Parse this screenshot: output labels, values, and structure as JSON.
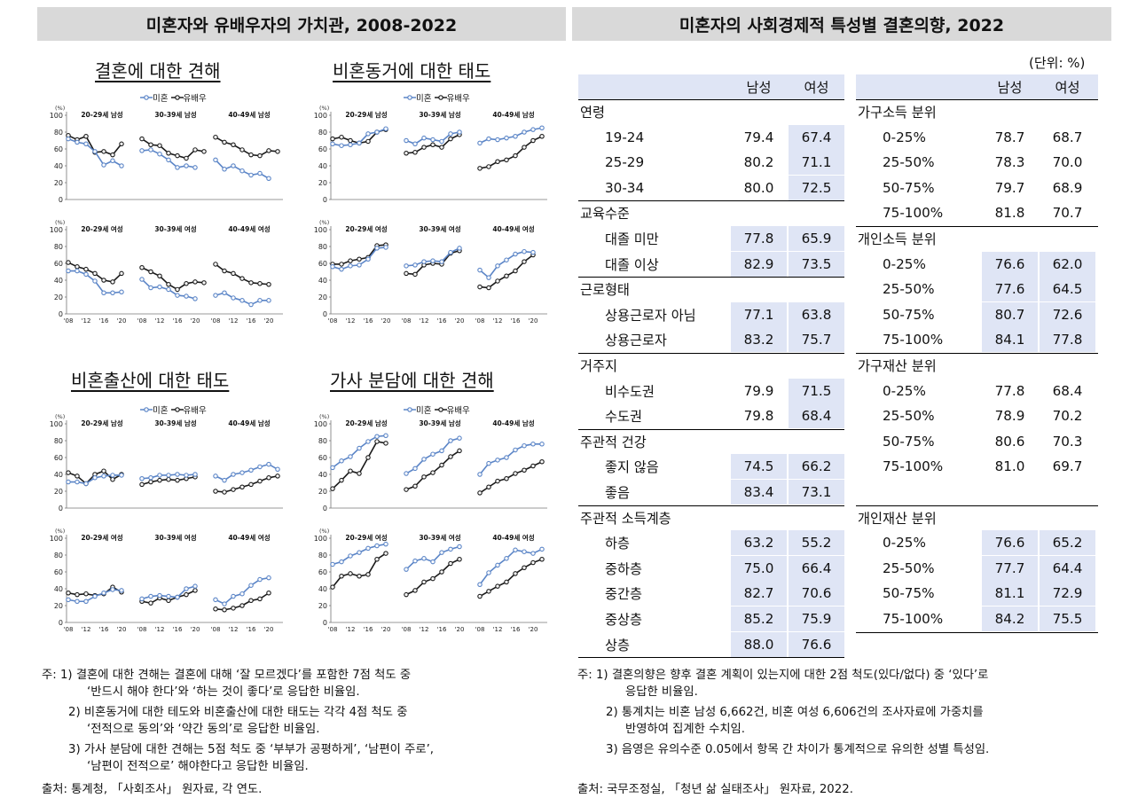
{
  "left": {
    "title": "미혼자와 유배우자의 가치관, 2008-2022",
    "legend": {
      "unmarried": "미혼",
      "married": "유배우"
    },
    "panels": [
      {
        "title": "결혼에 대한 견해"
      },
      {
        "title": "비혼동거에 대한 태도"
      },
      {
        "title": "비혼출산에 대한 태도"
      },
      {
        "title": "가사 분담에 대한 견해"
      }
    ],
    "notes": [
      "주: 1) 결혼에 대한 견해는 결혼에 대해 ‘잘 모르겠다’를 포함한 7점 척도 중",
      "‘반드시 해야 한다’와 ‘하는 것이 좋다’로 응답한 비율임.",
      "2) 비혼동거에 대한 테도와 비혼출산에 대한 태도는 각각 4점 척도 중",
      "‘전적으로 동의’와 ‘약간 동의’로 응답한 비율임.",
      "3) 가사 분담에 대한 견해는 5점 척도 중 ‘부부가 공평하게’, ‘남편이 주로’,",
      "‘남편이 전적으로’ 해야한다고 응답한 비율임."
    ],
    "source": "출처: 통계청, 「사회조사」 원자료, 각 연도."
  },
  "right": {
    "title": "미혼자의 사회경제적 특성별 결혼의향, 2022",
    "unit": "(단위: %)",
    "col_headers": {
      "male": "남성",
      "female": "여성"
    },
    "left_table": [
      {
        "type": "cat",
        "label": "연령"
      },
      {
        "type": "row",
        "label": "19-24",
        "m": "79.4",
        "f": "67.4",
        "sm": false,
        "sf": true
      },
      {
        "type": "row",
        "label": "25-29",
        "m": "80.2",
        "f": "71.1",
        "sm": false,
        "sf": true
      },
      {
        "type": "row",
        "label": "30-34",
        "m": "80.0",
        "f": "72.5",
        "sm": false,
        "sf": true
      },
      {
        "type": "cat",
        "label": "교육수준"
      },
      {
        "type": "row",
        "label": "대졸 미만",
        "m": "77.8",
        "f": "65.9",
        "sm": true,
        "sf": true
      },
      {
        "type": "row",
        "label": "대졸 이상",
        "m": "82.9",
        "f": "73.5",
        "sm": true,
        "sf": true
      },
      {
        "type": "cat",
        "label": "근로형태"
      },
      {
        "type": "row",
        "label": "상용근로자 아님",
        "m": "77.1",
        "f": "63.8",
        "sm": true,
        "sf": true
      },
      {
        "type": "row",
        "label": "상용근로자",
        "m": "83.2",
        "f": "75.7",
        "sm": true,
        "sf": true
      },
      {
        "type": "cat",
        "label": "거주지"
      },
      {
        "type": "row",
        "label": "비수도권",
        "m": "79.9",
        "f": "71.5",
        "sm": false,
        "sf": true
      },
      {
        "type": "row",
        "label": "수도권",
        "m": "79.8",
        "f": "68.4",
        "sm": false,
        "sf": true
      },
      {
        "type": "cat",
        "label": "주관적 건강"
      },
      {
        "type": "row",
        "label": "좋지 않음",
        "m": "74.5",
        "f": "66.2",
        "sm": true,
        "sf": true
      },
      {
        "type": "row",
        "label": "좋음",
        "m": "83.4",
        "f": "73.1",
        "sm": true,
        "sf": true
      },
      {
        "type": "cat",
        "label": "주관적 소득계층"
      },
      {
        "type": "row",
        "label": "하층",
        "m": "63.2",
        "f": "55.2",
        "sm": true,
        "sf": true
      },
      {
        "type": "row",
        "label": "중하층",
        "m": "75.0",
        "f": "66.4",
        "sm": true,
        "sf": true
      },
      {
        "type": "row",
        "label": "중간층",
        "m": "82.7",
        "f": "70.6",
        "sm": true,
        "sf": true
      },
      {
        "type": "row",
        "label": "중상층",
        "m": "85.2",
        "f": "75.9",
        "sm": true,
        "sf": true
      },
      {
        "type": "row",
        "label": "상층",
        "m": "88.0",
        "f": "76.6",
        "sm": true,
        "sf": true
      }
    ],
    "right_table": [
      {
        "type": "cat",
        "label": "가구소득 분위"
      },
      {
        "type": "row",
        "label": "0-25%",
        "m": "78.7",
        "f": "68.7",
        "sm": false,
        "sf": false
      },
      {
        "type": "row",
        "label": "25-50%",
        "m": "78.3",
        "f": "70.0",
        "sm": false,
        "sf": false
      },
      {
        "type": "row",
        "label": "50-75%",
        "m": "79.7",
        "f": "68.9",
        "sm": false,
        "sf": false
      },
      {
        "type": "row",
        "label": "75-100%",
        "m": "81.8",
        "f": "70.7",
        "sm": false,
        "sf": false
      },
      {
        "type": "cat",
        "label": "개인소득 분위"
      },
      {
        "type": "row",
        "label": "0-25%",
        "m": "76.6",
        "f": "62.0",
        "sm": true,
        "sf": true
      },
      {
        "type": "row",
        "label": "25-50%",
        "m": "77.6",
        "f": "64.5",
        "sm": true,
        "sf": true
      },
      {
        "type": "row",
        "label": "50-75%",
        "m": "80.7",
        "f": "72.6",
        "sm": true,
        "sf": true
      },
      {
        "type": "row",
        "label": "75-100%",
        "m": "84.1",
        "f": "77.8",
        "sm": true,
        "sf": true
      },
      {
        "type": "cat",
        "label": "가구재산 분위"
      },
      {
        "type": "row",
        "label": "0-25%",
        "m": "77.8",
        "f": "68.4",
        "sm": false,
        "sf": false
      },
      {
        "type": "row",
        "label": "25-50%",
        "m": "78.9",
        "f": "70.2",
        "sm": false,
        "sf": false
      },
      {
        "type": "row",
        "label": "50-75%",
        "m": "80.6",
        "f": "70.3",
        "sm": false,
        "sf": false
      },
      {
        "type": "row",
        "label": "75-100%",
        "m": "81.0",
        "f": "69.7",
        "sm": false,
        "sf": false
      },
      {
        "type": "cat",
        "label": ""
      },
      {
        "type": "cat",
        "label": "개인재산 분위"
      },
      {
        "type": "row",
        "label": "0-25%",
        "m": "76.6",
        "f": "65.2",
        "sm": true,
        "sf": true
      },
      {
        "type": "row",
        "label": "25-50%",
        "m": "77.7",
        "f": "64.4",
        "sm": true,
        "sf": true
      },
      {
        "type": "row",
        "label": "50-75%",
        "m": "81.1",
        "f": "72.9",
        "sm": true,
        "sf": true
      },
      {
        "type": "row",
        "label": "75-100%",
        "m": "84.2",
        "f": "75.5",
        "sm": true,
        "sf": true
      }
    ],
    "notes": [
      "주: 1) 결혼의향은 향후 결혼 계획이 있는지에 대한 2점 척도(있다/없다) 중 ‘있다’로",
      "응답한 비율임.",
      "2) 통계치는 비혼 남성 6,662건, 비혼 여성 6,606건의 조사자료에 가중치를",
      "반영하여 집계한 수치임.",
      "3) 음영은 유의수준 0.05에서 항목 간 차이가 통계적으로 유의한 성별 특성임."
    ],
    "source": "출처: 국무조정실, 「청년 삶 실태조사」 원자료, 2022."
  },
  "chart_data": {
    "type": "line",
    "colors": {
      "unmarried": "#5b85c7",
      "married": "#1a1a1a"
    },
    "unit_label": "(%)",
    "ylim": [
      0,
      100
    ],
    "yticks": [
      0,
      20,
      40,
      60,
      80,
      100
    ],
    "xtick_labels": [
      "'08",
      "'12",
      "'16",
      "'20"
    ],
    "x": [
      2008,
      2010,
      2012,
      2014,
      2016,
      2018,
      2020,
      2022
    ],
    "group_labels": {
      "male": [
        "20-29세 남성",
        "30-39세 남성",
        "40-49세 남성"
      ],
      "female": [
        "20-29세 여성",
        "30-39세 여성",
        "40-49세 여성"
      ]
    },
    "panels": [
      {
        "male": [
          {
            "unmarried": [
              72,
              68,
              66,
              57,
              41,
              46,
              40,
              null
            ],
            "married": [
              76,
              71,
              75,
              56,
              57,
              53,
              66,
              null
            ]
          },
          {
            "unmarried": [
              58,
              59,
              54,
              47,
              38,
              40,
              38,
              null
            ],
            "married": [
              72,
              65,
              64,
              55,
              52,
              49,
              59,
              57
            ]
          },
          {
            "unmarried": [
              47,
              36,
              40,
              34,
              29,
              31,
              25,
              null
            ],
            "married": [
              74,
              68,
              65,
              59,
              53,
              52,
              58,
              57
            ]
          }
        ],
        "female": [
          {
            "unmarried": [
              51,
              51,
              47,
              39,
              25,
              25,
              26,
              null
            ],
            "married": [
              61,
              56,
              53,
              48,
              40,
              38,
              48,
              null
            ]
          },
          {
            "unmarried": [
              41,
              31,
              32,
              29,
              22,
              21,
              18,
              null
            ],
            "married": [
              55,
              50,
              45,
              35,
              29,
              36,
              38,
              37
            ]
          },
          {
            "unmarried": [
              22,
              25,
              19,
              16,
              11,
              16,
              16,
              null
            ],
            "married": [
              59,
              51,
              48,
              42,
              37,
              36,
              35,
              null
            ]
          }
        ]
      },
      {
        "male": [
          {
            "unmarried": [
              66,
              64,
              65,
              67,
              78,
              80,
              84,
              null
            ],
            "married": [
              72,
              74,
              70,
              67,
              69,
              80,
              83,
              null
            ]
          },
          {
            "unmarried": [
              70,
              66,
              73,
              71,
              69,
              78,
              80,
              null
            ],
            "married": [
              55,
              56,
              62,
              65,
              62,
              72,
              77,
              null
            ]
          },
          {
            "unmarried": [
              67,
              72,
              71,
              73,
              75,
              80,
              83,
              85
            ],
            "married": [
              37,
              39,
              45,
              47,
              52,
              62,
              70,
              75
            ]
          }
        ],
        "female": [
          {
            "unmarried": [
              56,
              53,
              57,
              58,
              65,
              78,
              79,
              null
            ],
            "married": [
              59,
              59,
              63,
              65,
              67,
              81,
              82,
              null
            ]
          },
          {
            "unmarried": [
              57,
              58,
              62,
              63,
              62,
              73,
              78,
              null
            ],
            "married": [
              48,
              47,
              58,
              60,
              59,
              72,
              75,
              null
            ]
          },
          {
            "unmarried": [
              52,
              43,
              57,
              64,
              71,
              74,
              73,
              null
            ],
            "married": [
              32,
              31,
              39,
              45,
              51,
              62,
              70,
              null
            ]
          }
        ]
      },
      {
        "male": [
          {
            "unmarried": [
              31,
              31,
              29,
              36,
              38,
              39,
              39,
              null
            ],
            "married": [
              42,
              38,
              29,
              40,
              44,
              34,
              40,
              null
            ]
          },
          {
            "unmarried": [
              35,
              36,
              39,
              39,
              40,
              39,
              40,
              null
            ],
            "married": [
              28,
              31,
              33,
              34,
              33,
              35,
              37,
              null
            ]
          },
          {
            "unmarried": [
              38,
              33,
              40,
              42,
              45,
              49,
              52,
              46
            ],
            "married": [
              20,
              19,
              22,
              25,
              28,
              32,
              36,
              38
            ]
          }
        ],
        "female": [
          {
            "unmarried": [
              27,
              25,
              25,
              31,
              35,
              39,
              38,
              null
            ],
            "married": [
              35,
              33,
              34,
              32,
              34,
              42,
              36,
              null
            ]
          },
          {
            "unmarried": [
              28,
              31,
              32,
              31,
              30,
              40,
              43,
              null
            ],
            "married": [
              25,
              23,
              29,
              26,
              30,
              33,
              38,
              null
            ]
          },
          {
            "unmarried": [
              27,
              22,
              31,
              34,
              44,
              51,
              53,
              null
            ],
            "married": [
              16,
              15,
              17,
              20,
              26,
              28,
              35,
              null
            ]
          }
        ]
      },
      {
        "male": [
          {
            "unmarried": [
              48,
              56,
              61,
              71,
              79,
              85,
              86,
              null
            ],
            "married": [
              23,
              33,
              44,
              41,
              60,
              79,
              77,
              null
            ]
          },
          {
            "unmarried": [
              41,
              47,
              58,
              64,
              68,
              80,
              83,
              null
            ],
            "married": [
              22,
              26,
              37,
              42,
              51,
              61,
              68,
              null
            ]
          },
          {
            "unmarried": [
              40,
              53,
              57,
              60,
              69,
              74,
              76,
              76
            ],
            "married": [
              18,
              25,
              32,
              35,
              41,
              45,
              50,
              55
            ]
          }
        ],
        "female": [
          {
            "unmarried": [
              69,
              72,
              79,
              83,
              88,
              91,
              93,
              null
            ],
            "married": [
              42,
              55,
              58,
              55,
              57,
              75,
              82,
              null
            ]
          },
          {
            "unmarried": [
              63,
              73,
              76,
              72,
              83,
              87,
              90,
              null
            ],
            "married": [
              33,
              38,
              48,
              52,
              60,
              70,
              75,
              null
            ]
          },
          {
            "unmarried": [
              45,
              59,
              68,
              76,
              86,
              84,
              82,
              87
            ],
            "married": [
              31,
              37,
              43,
              48,
              58,
              65,
              71,
              75
            ]
          }
        ]
      }
    ]
  }
}
